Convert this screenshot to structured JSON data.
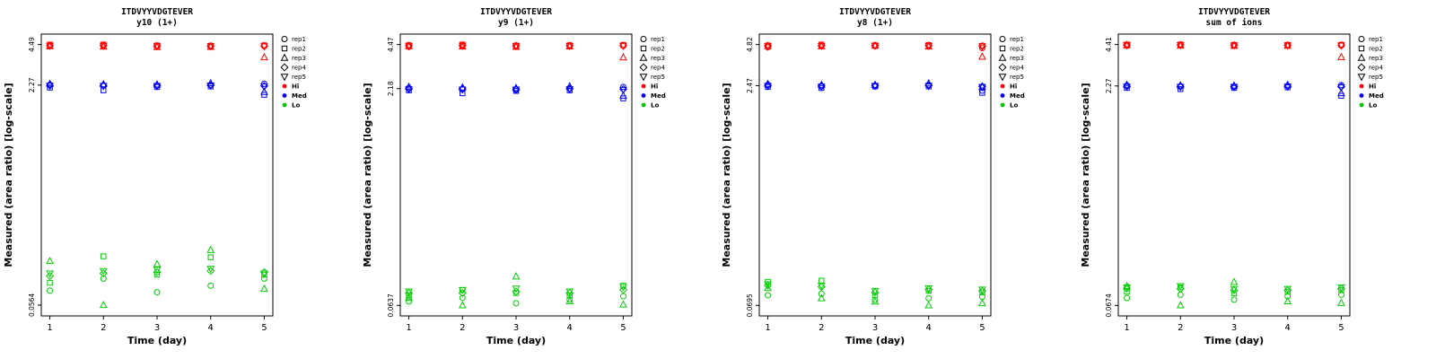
{
  "figure": {
    "background": "#ffffff"
  },
  "legend": {
    "reps": [
      {
        "label": "rep1",
        "shape": "circle"
      },
      {
        "label": "rep2",
        "shape": "square"
      },
      {
        "label": "rep3",
        "shape": "triangle-up"
      },
      {
        "label": "rep4",
        "shape": "diamond"
      },
      {
        "label": "rep5",
        "shape": "triangle-down"
      }
    ],
    "levels": [
      {
        "label": "Hi",
        "color": "#FF0000"
      },
      {
        "label": "Med",
        "color": "#0000FF"
      },
      {
        "label": "Lo",
        "color": "#00CD00"
      }
    ]
  },
  "chart_data": [
    {
      "type": "scatter",
      "title": "ITDVYYVDGTEVER",
      "subtitle": "y10 (1+)",
      "xlabel": "Time (day)",
      "ylabel": "Measured (area ratio) [log-scale]",
      "x_ticks": [
        1,
        2,
        3,
        4,
        5
      ],
      "y_scale": "log10",
      "xlim": [
        0.84,
        5.16
      ],
      "ylim": [
        0.047,
        5.35
      ],
      "y_ticks": [
        {
          "value": 4.49,
          "label": "4.49"
        },
        {
          "value": 2.27,
          "label": "2.27"
        },
        {
          "value": 0.0564,
          "label": "0.0564"
        }
      ],
      "series": [
        {
          "name": "Hi",
          "color": "#FF0000",
          "reps": [
            "rep1",
            "rep2",
            "rep3",
            "rep4",
            "rep5"
          ],
          "values": [
            [
              4.38,
              4.49,
              4.35,
              4.42,
              4.4
            ],
            [
              4.4,
              4.49,
              4.33,
              4.43,
              4.41
            ],
            [
              4.36,
              4.42,
              4.3,
              4.38,
              4.37
            ],
            [
              4.34,
              4.4,
              4.31,
              4.37,
              4.36
            ],
            [
              4.37,
              4.43,
              3.62,
              4.38,
              4.36
            ]
          ]
        },
        {
          "name": "Med",
          "color": "#0000FF",
          "reps": [
            "rep1",
            "rep2",
            "rep3",
            "rep4",
            "rep5"
          ],
          "values": [
            [
              2.28,
              2.18,
              2.32,
              2.26,
              2.25
            ],
            [
              2.26,
              2.08,
              2.3,
              2.25,
              2.24
            ],
            [
              2.25,
              2.2,
              2.29,
              2.26,
              2.24
            ],
            [
              2.28,
              2.22,
              2.34,
              2.27,
              2.26
            ],
            [
              2.32,
              1.93,
              2.02,
              2.24,
              2.22
            ]
          ]
        },
        {
          "name": "Lo",
          "color": "#00CD00",
          "reps": [
            "rep1",
            "rep2",
            "rep3",
            "rep4",
            "rep5"
          ],
          "values": [
            [
              0.072,
              0.082,
              0.118,
              0.092,
              0.096
            ],
            [
              0.088,
              0.128,
              0.0564,
              0.096,
              0.1
            ],
            [
              0.07,
              0.094,
              0.112,
              0.098,
              0.102
            ],
            [
              0.078,
              0.126,
              0.142,
              0.1,
              0.104
            ],
            [
              0.088,
              0.094,
              0.074,
              0.098,
              0.096
            ]
          ]
        }
      ]
    },
    {
      "type": "scatter",
      "title": "ITDVYYVDGTEVER",
      "subtitle": "y9 (1+)",
      "xlabel": "Time (day)",
      "ylabel": "Measured (area ratio) [log-scale]",
      "x_ticks": [
        1,
        2,
        3,
        4,
        5
      ],
      "y_scale": "log10",
      "xlim": [
        0.84,
        5.16
      ],
      "ylim": [
        0.0537,
        5.3
      ],
      "y_ticks": [
        {
          "value": 4.47,
          "label": "4.47"
        },
        {
          "value": 2.18,
          "label": "2.18"
        },
        {
          "value": 0.0637,
          "label": "0.0637"
        }
      ],
      "series": [
        {
          "name": "Hi",
          "color": "#FF0000",
          "reps": [
            "rep1",
            "rep2",
            "rep3",
            "rep4",
            "rep5"
          ],
          "values": [
            [
              4.3,
              4.42,
              4.35,
              4.4,
              4.38
            ],
            [
              4.36,
              4.47,
              4.32,
              4.41,
              4.39
            ],
            [
              4.34,
              4.4,
              4.3,
              4.38,
              4.36
            ],
            [
              4.36,
              4.42,
              4.33,
              4.39,
              4.37
            ],
            [
              4.38,
              4.44,
              3.62,
              4.4,
              4.38
            ]
          ]
        },
        {
          "name": "Med",
          "color": "#0000FF",
          "reps": [
            "rep1",
            "rep2",
            "rep3",
            "rep4",
            "rep5"
          ],
          "values": [
            [
              2.2,
              2.12,
              2.24,
              2.18,
              2.16
            ],
            [
              2.16,
              2.02,
              2.22,
              2.17,
              2.15
            ],
            [
              2.14,
              2.1,
              2.2,
              2.16,
              2.15
            ],
            [
              2.18,
              2.12,
              2.26,
              2.18,
              2.16
            ],
            [
              2.24,
              1.86,
              1.94,
              2.16,
              2.14
            ]
          ]
        },
        {
          "name": "Lo",
          "color": "#00CD00",
          "reps": [
            "rep1",
            "rep2",
            "rep3",
            "rep4",
            "rep5"
          ],
          "values": [
            [
              0.068,
              0.075,
              0.072,
              0.078,
              0.08
            ],
            [
              0.072,
              0.082,
              0.0637,
              0.078,
              0.082
            ],
            [
              0.066,
              0.078,
              0.102,
              0.08,
              0.084
            ],
            [
              0.07,
              0.075,
              0.068,
              0.078,
              0.08
            ],
            [
              0.074,
              0.088,
              0.0645,
              0.082,
              0.086
            ]
          ]
        }
      ]
    },
    {
      "type": "scatter",
      "title": "ITDVYYVDGTEVER",
      "subtitle": "y8 (1+)",
      "xlabel": "Time (day)",
      "ylabel": "Measured (area ratio) [log-scale]",
      "x_ticks": [
        1,
        2,
        3,
        4,
        5
      ],
      "y_scale": "log10",
      "xlim": [
        0.84,
        5.16
      ],
      "ylim": [
        0.0586,
        5.71
      ],
      "y_ticks": [
        {
          "value": 4.82,
          "label": "4.82"
        },
        {
          "value": 2.47,
          "label": "2.47"
        },
        {
          "value": 0.0695,
          "label": "0.0695"
        }
      ],
      "series": [
        {
          "name": "Hi",
          "color": "#FF0000",
          "reps": [
            "rep1",
            "rep2",
            "rep3",
            "rep4",
            "rep5"
          ],
          "values": [
            [
              4.6,
              4.75,
              4.7,
              4.72,
              4.71
            ],
            [
              4.72,
              4.82,
              4.68,
              4.74,
              4.72
            ],
            [
              4.7,
              4.76,
              4.72,
              4.74,
              4.73
            ],
            [
              4.72,
              4.78,
              4.66,
              4.74,
              4.72
            ],
            [
              4.55,
              4.72,
              3.95,
              4.7,
              4.68
            ]
          ]
        },
        {
          "name": "Med",
          "color": "#0000FF",
          "reps": [
            "rep1",
            "rep2",
            "rep3",
            "rep4",
            "rep5"
          ],
          "values": [
            [
              2.5,
              2.42,
              2.54,
              2.48,
              2.46
            ],
            [
              2.44,
              2.38,
              2.5,
              2.46,
              2.44
            ],
            [
              2.46,
              2.44,
              2.5,
              2.48,
              2.46
            ],
            [
              2.5,
              2.44,
              2.56,
              2.48,
              2.46
            ],
            [
              2.28,
              2.2,
              2.42,
              2.44,
              2.42
            ]
          ]
        },
        {
          "name": "Lo",
          "color": "#00CD00",
          "reps": [
            "rep1",
            "rep2",
            "rep3",
            "rep4",
            "rep5"
          ],
          "values": [
            [
              0.082,
              0.102,
              0.092,
              0.096,
              0.098
            ],
            [
              0.084,
              0.104,
              0.078,
              0.094,
              0.096
            ],
            [
              0.076,
              0.082,
              0.074,
              0.086,
              0.088
            ],
            [
              0.078,
              0.088,
              0.0695,
              0.09,
              0.092
            ],
            [
              0.08,
              0.086,
              0.072,
              0.088,
              0.09
            ]
          ]
        }
      ]
    },
    {
      "type": "scatter",
      "title": "ITDVYYVDGTEVER",
      "subtitle": "sum of ions",
      "xlabel": "Time (day)",
      "ylabel": "Measured (area ratio) [log-scale]",
      "x_ticks": [
        1,
        2,
        3,
        4,
        5
      ],
      "y_scale": "log10",
      "xlim": [
        0.84,
        5.16
      ],
      "ylim": [
        0.057,
        5.21
      ],
      "y_ticks": [
        {
          "value": 4.41,
          "label": "4.41"
        },
        {
          "value": 2.27,
          "label": "2.27"
        },
        {
          "value": 0.0674,
          "label": "0.0674"
        }
      ],
      "series": [
        {
          "name": "Hi",
          "color": "#FF0000",
          "reps": [
            "rep1",
            "rep2",
            "rep3",
            "rep4",
            "rep5"
          ],
          "values": [
            [
              4.33,
              4.41,
              4.35,
              4.38,
              4.37
            ],
            [
              4.36,
              4.41,
              4.33,
              4.38,
              4.37
            ],
            [
              4.34,
              4.38,
              4.31,
              4.36,
              4.35
            ],
            [
              4.33,
              4.38,
              4.32,
              4.36,
              4.35
            ],
            [
              4.35,
              4.39,
              3.6,
              4.36,
              4.34
            ]
          ]
        },
        {
          "name": "Med",
          "color": "#0000FF",
          "reps": [
            "rep1",
            "rep2",
            "rep3",
            "rep4",
            "rep5"
          ],
          "values": [
            [
              2.28,
              2.2,
              2.31,
              2.26,
              2.25
            ],
            [
              2.26,
              2.16,
              2.29,
              2.25,
              2.24
            ],
            [
              2.24,
              2.2,
              2.28,
              2.25,
              2.24
            ],
            [
              2.27,
              2.22,
              2.31,
              2.26,
              2.25
            ],
            [
              2.3,
              1.94,
              2.02,
              2.24,
              2.22
            ]
          ]
        },
        {
          "name": "Lo",
          "color": "#00CD00",
          "reps": [
            "rep1",
            "rep2",
            "rep3",
            "rep4",
            "rep5"
          ],
          "values": [
            [
              0.076,
              0.084,
              0.092,
              0.088,
              0.09
            ],
            [
              0.08,
              0.09,
              0.0674,
              0.088,
              0.092
            ],
            [
              0.074,
              0.082,
              0.098,
              0.086,
              0.088
            ],
            [
              0.078,
              0.084,
              0.072,
              0.086,
              0.088
            ],
            [
              0.08,
              0.086,
              0.07,
              0.088,
              0.09
            ]
          ]
        }
      ]
    }
  ]
}
